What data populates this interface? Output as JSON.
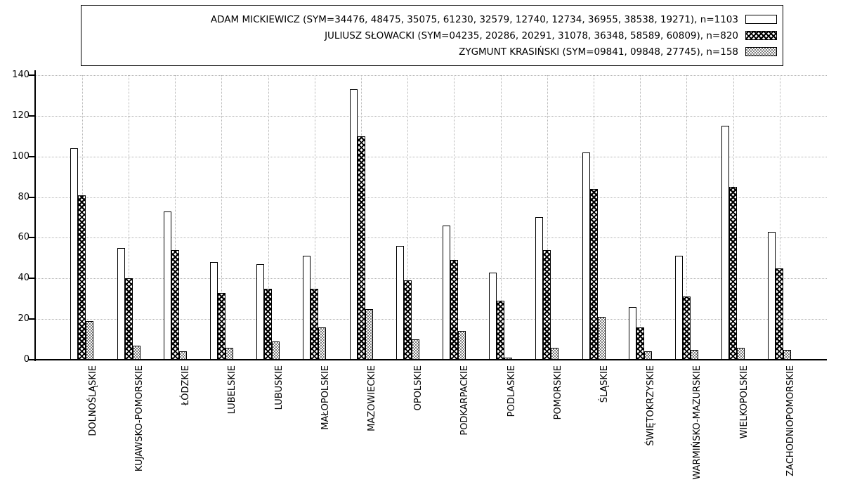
{
  "chart_data": {
    "type": "bar",
    "title": "",
    "xlabel": "",
    "ylabel": "",
    "ylim": [
      0,
      140
    ],
    "yticks": [
      0,
      20,
      40,
      60,
      80,
      100,
      120,
      140
    ],
    "grid": true,
    "legend_position": "top-center-boxed",
    "categories": [
      "DOLNOŚLĄSKIE",
      "KUJAWSKO-POMORSKIE",
      "ŁÓDZKIE",
      "LUBELSKIE",
      "LUBUSKIE",
      "MAŁOPOLSKIE",
      "MAZOWIECKIE",
      "OPOLSKIE",
      "PODKARPACKIE",
      "PODLASKIE",
      "POMORSKIE",
      "ŚLĄSKIE",
      "ŚWIĘTOKRZYSKIE",
      "WARMIŃSKO-MAZURSKIE",
      "WIELKOPOLSKIE",
      "ZACHODNIOPOMORSKIE"
    ],
    "series": [
      {
        "name": "ADAM MICKIEWICZ",
        "legend_label": "ADAM MICKIEWICZ (SYM=34476, 48475, 35075, 61230, 32579, 12740, 12734, 36955, 38538, 19271), n=1103",
        "sym": [
          "34476",
          "48475",
          "35075",
          "61230",
          "32579",
          "12740",
          "12734",
          "36955",
          "38538",
          "19271"
        ],
        "n": 1103,
        "pattern": "solid-white",
        "values": [
          104,
          55,
          73,
          48,
          47,
          51,
          133,
          56,
          66,
          43,
          70,
          102,
          26,
          51,
          115,
          63
        ]
      },
      {
        "name": "JULIUSZ SŁOWACKI",
        "legend_label": "JULIUSZ SŁOWACKI (SYM=04235, 20286, 20291, 31078, 36348, 58589, 60809), n=820",
        "sym": [
          "04235",
          "20286",
          "20291",
          "31078",
          "36348",
          "58589",
          "60809"
        ],
        "n": 820,
        "pattern": "crosshatch",
        "values": [
          81,
          40,
          54,
          33,
          35,
          35,
          110,
          39,
          49,
          29,
          54,
          84,
          16,
          31,
          85,
          45
        ]
      },
      {
        "name": "ZYGMUNT KRASIŃSKI",
        "legend_label": "ZYGMUNT KRASIŃSKI (SYM=09841, 09848, 27745), n=158",
        "sym": [
          "09841",
          "09848",
          "27745"
        ],
        "n": 158,
        "pattern": "checker",
        "values": [
          19,
          7,
          4,
          6,
          9,
          16,
          25,
          10,
          14,
          1,
          6,
          21,
          4,
          5,
          6,
          5
        ]
      }
    ],
    "colors": {
      "background": "#ffffff",
      "axis": "#000000",
      "bar_border": "#000000",
      "grid": "#b4b4b4",
      "checker_gray": "#7d7d7d"
    }
  }
}
